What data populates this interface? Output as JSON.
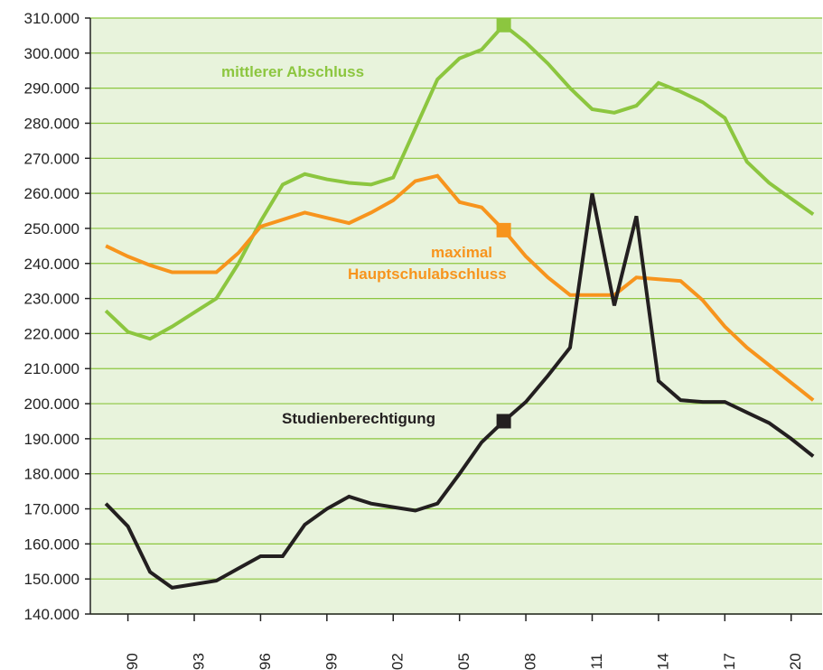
{
  "chart_data": {
    "type": "line",
    "x": [
      1989,
      1990,
      1991,
      1992,
      1993,
      1994,
      1995,
      1996,
      1997,
      1998,
      1999,
      2000,
      2001,
      2002,
      2003,
      2004,
      2005,
      2006,
      2007,
      2008,
      2009,
      2010,
      2011,
      2012,
      2013,
      2014,
      2015,
      2016,
      2017,
      2018,
      2019,
      2020,
      2021
    ],
    "xlim": [
      1988.3,
      2021.4
    ],
    "xticks": [
      1990,
      1993,
      1996,
      1999,
      2002,
      2005,
      2008,
      2011,
      2014,
      2017,
      2020
    ],
    "ylim": [
      140000,
      310000
    ],
    "yticks": [
      {
        "value": 140000,
        "label": "140.000"
      },
      {
        "value": 150000,
        "label": "150.000"
      },
      {
        "value": 160000,
        "label": "160.000"
      },
      {
        "value": 170000,
        "label": "170.000"
      },
      {
        "value": 180000,
        "label": "180.000"
      },
      {
        "value": 190000,
        "label": "190.000"
      },
      {
        "value": 200000,
        "label": "200.000"
      },
      {
        "value": 210000,
        "label": "210.000"
      },
      {
        "value": 220000,
        "label": "220.000"
      },
      {
        "value": 230000,
        "label": "230.000"
      },
      {
        "value": 240000,
        "label": "240.000"
      },
      {
        "value": 250000,
        "label": "250.000"
      },
      {
        "value": 260000,
        "label": "260.000"
      },
      {
        "value": 270000,
        "label": "270.000"
      },
      {
        "value": 280000,
        "label": "280.000"
      },
      {
        "value": 290000,
        "label": "290.000"
      },
      {
        "value": 300000,
        "label": "300.000"
      },
      {
        "value": 310000,
        "label": "310.000"
      }
    ],
    "grid": true,
    "highlight_x": 2007,
    "series": [
      {
        "name": "mittlerer Abschluss",
        "color": "#8cc63f",
        "values": [
          226500,
          220500,
          218500,
          222000,
          226000,
          230000,
          240000,
          252000,
          262500,
          265500,
          264000,
          263000,
          262500,
          264500,
          278500,
          292500,
          298500,
          301000,
          308000,
          303000,
          297000,
          290000,
          284000,
          283000,
          285000,
          291500,
          289000,
          286000,
          281500,
          269000,
          263000,
          258500,
          254000
        ]
      },
      {
        "name": "maximal Hauptschulabschluss",
        "color": "#f7941d",
        "values": [
          245000,
          242000,
          239500,
          237500,
          237500,
          237500,
          243000,
          250500,
          252500,
          254500,
          253000,
          251500,
          254500,
          258000,
          263500,
          265000,
          257500,
          256000,
          249500,
          242000,
          236000,
          231000,
          231000,
          231000,
          236000,
          235500,
          235000,
          229500,
          222000,
          216000,
          211000,
          206000,
          201000
        ]
      },
      {
        "name": "Studienberechtigung",
        "color": "#231f20",
        "values": [
          171500,
          165000,
          152000,
          147500,
          148500,
          149500,
          153000,
          156500,
          156500,
          165500,
          170000,
          173500,
          171500,
          170500,
          169500,
          171500,
          180000,
          189000,
          195000,
          200500,
          208000,
          216000,
          260000,
          228000,
          253500,
          206500,
          201000,
          200500,
          200500,
          197500,
          194500,
          190000,
          185000
        ]
      }
    ]
  }
}
